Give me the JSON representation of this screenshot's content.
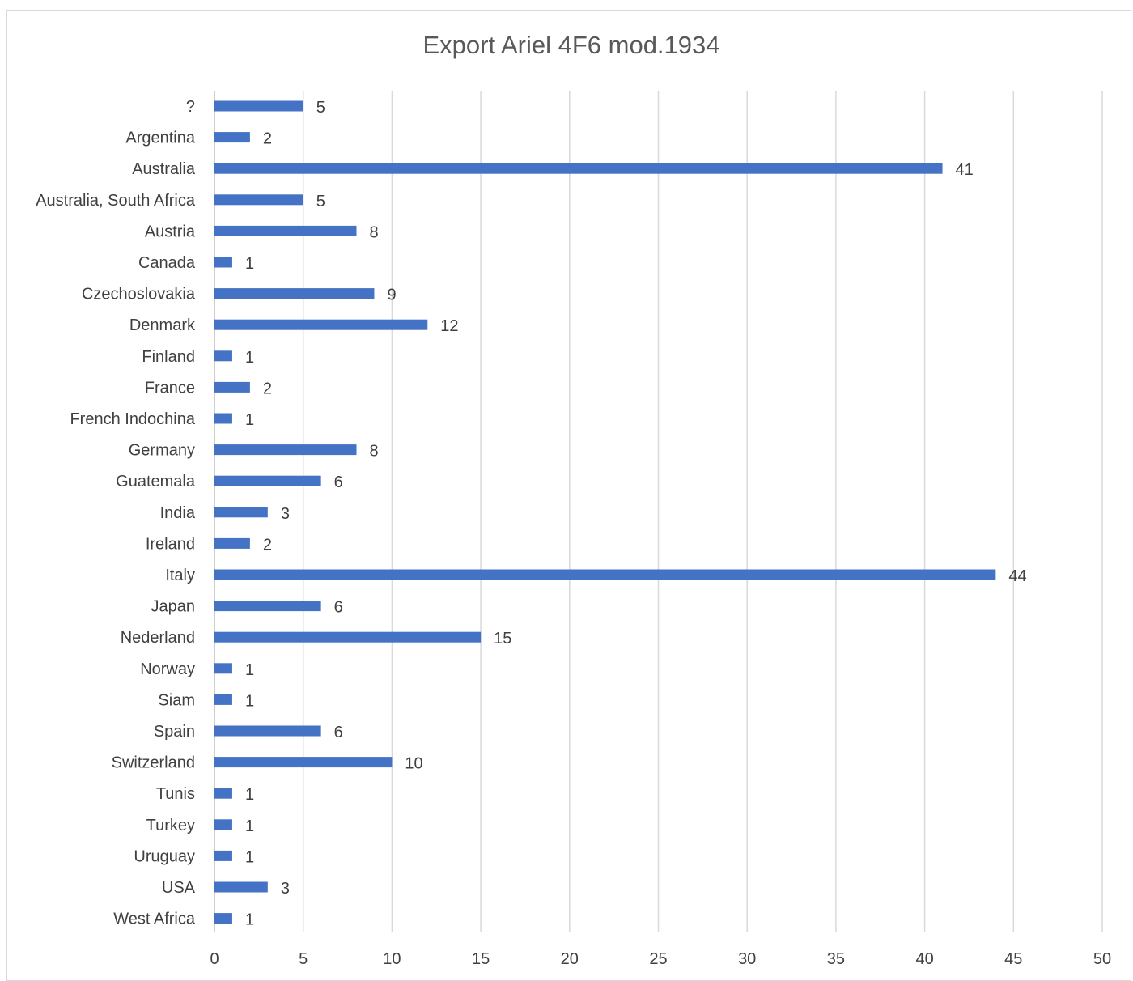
{
  "chart_data": {
    "type": "bar",
    "orientation": "horizontal",
    "title": "Export Ariel 4F6 mod.1934",
    "xlabel": "",
    "ylabel": "",
    "xlim": [
      0,
      50
    ],
    "x_ticks": [
      0,
      5,
      10,
      15,
      20,
      25,
      30,
      35,
      40,
      45,
      50
    ],
    "grid": "vertical",
    "bar_color": "#4472c4",
    "grid_color": "#d9d9d9",
    "categories": [
      "?",
      "Argentina",
      "Australia",
      "Australia, South Africa",
      "Austria",
      "Canada",
      "Czechoslovakia",
      "Denmark",
      "Finland",
      "France",
      "French Indochina",
      "Germany",
      "Guatemala",
      "India",
      "Ireland",
      "Italy",
      "Japan",
      "Nederland",
      "Norway",
      "Siam",
      "Spain",
      "Switzerland",
      "Tunis",
      "Turkey",
      "Uruguay",
      "USA",
      "West Africa"
    ],
    "values": [
      5,
      2,
      41,
      5,
      8,
      1,
      9,
      12,
      1,
      2,
      1,
      8,
      6,
      3,
      2,
      44,
      6,
      15,
      1,
      1,
      6,
      10,
      1,
      1,
      1,
      3,
      1
    ]
  }
}
